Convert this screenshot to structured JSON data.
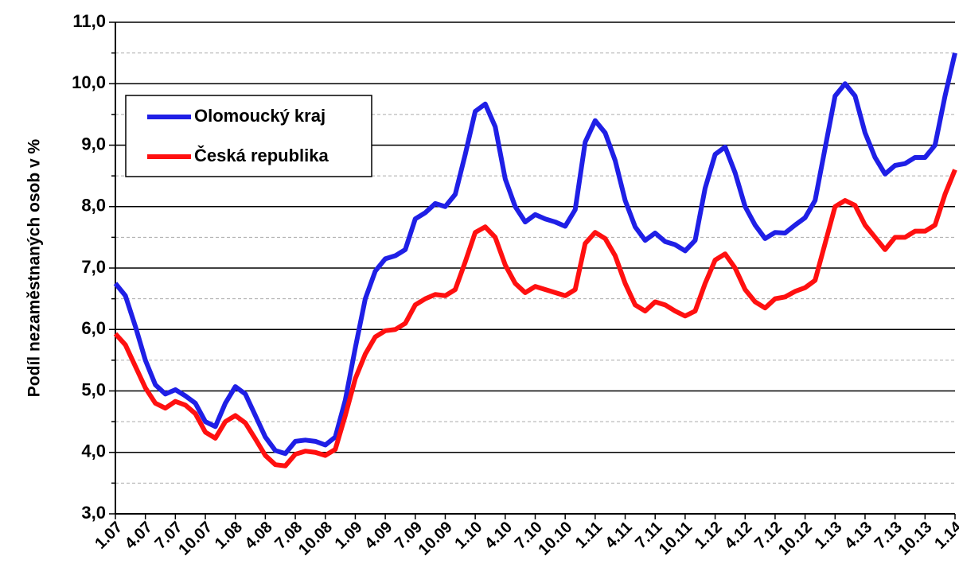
{
  "chart_data": {
    "type": "line",
    "y_label": "Podíl nezaměstnaných osob v %",
    "categories": [
      "1.07",
      null,
      null,
      "4.07",
      null,
      null,
      "7.07",
      null,
      null,
      "10.07",
      null,
      null,
      "1.08",
      null,
      null,
      "4.08",
      null,
      null,
      "7.08",
      null,
      null,
      "10.08",
      null,
      null,
      "1.09",
      null,
      null,
      "4.09",
      null,
      null,
      "7.09",
      null,
      null,
      "10.09",
      null,
      null,
      "1.10",
      null,
      null,
      "4.10",
      null,
      null,
      "7.10",
      null,
      null,
      "10.10",
      null,
      null,
      "1.11",
      null,
      null,
      "4.11",
      null,
      null,
      "7.11",
      null,
      null,
      "10.11",
      null,
      null,
      "1.12",
      null,
      null,
      "4.12",
      null,
      null,
      "7.12",
      null,
      null,
      "10.12",
      null,
      null,
      "1.13",
      null,
      null,
      "4.13",
      null,
      null,
      "7.13",
      null,
      null,
      "10.13",
      null,
      null,
      "1.14"
    ],
    "series": [
      {
        "name": "Olomoucký kraj",
        "color": "#1f1fe6",
        "values": [
          6.75,
          6.55,
          6.05,
          5.5,
          5.1,
          4.95,
          5.02,
          4.92,
          4.8,
          4.5,
          4.42,
          4.8,
          5.07,
          4.95,
          4.6,
          4.25,
          4.03,
          3.98,
          4.18,
          4.2,
          4.18,
          4.12,
          4.25,
          4.85,
          5.7,
          6.5,
          6.95,
          7.15,
          7.2,
          7.3,
          7.8,
          7.9,
          8.05,
          8.0,
          8.2,
          8.85,
          9.55,
          9.67,
          9.3,
          8.45,
          8.0,
          7.75,
          7.87,
          7.8,
          7.75,
          7.68,
          7.95,
          9.05,
          9.4,
          9.2,
          8.75,
          8.1,
          7.67,
          7.45,
          7.57,
          7.43,
          7.38,
          7.28,
          7.45,
          8.3,
          8.85,
          8.97,
          8.55,
          8.0,
          7.7,
          7.48,
          7.58,
          7.57,
          7.7,
          7.82,
          8.1,
          8.95,
          9.8,
          10.0,
          9.8,
          9.2,
          8.8,
          8.53,
          8.67,
          8.7,
          8.8,
          8.8,
          9.0,
          9.8,
          10.5
        ]
      },
      {
        "name": "Česká republika",
        "color": "#ff1010",
        "values": [
          5.93,
          5.75,
          5.4,
          5.05,
          4.8,
          4.72,
          4.83,
          4.77,
          4.63,
          4.33,
          4.23,
          4.5,
          4.6,
          4.48,
          4.22,
          3.95,
          3.8,
          3.78,
          3.97,
          4.02,
          4.0,
          3.95,
          4.05,
          4.6,
          5.2,
          5.6,
          5.88,
          5.98,
          6.0,
          6.1,
          6.4,
          6.5,
          6.57,
          6.55,
          6.65,
          7.1,
          7.58,
          7.67,
          7.5,
          7.05,
          6.75,
          6.6,
          6.7,
          6.65,
          6.6,
          6.55,
          6.65,
          7.4,
          7.58,
          7.48,
          7.2,
          6.75,
          6.4,
          6.3,
          6.45,
          6.4,
          6.3,
          6.22,
          6.3,
          6.75,
          7.13,
          7.23,
          7.0,
          6.65,
          6.45,
          6.35,
          6.5,
          6.53,
          6.62,
          6.68,
          6.8,
          7.4,
          8.0,
          8.1,
          8.02,
          7.7,
          7.5,
          7.3,
          7.5,
          7.5,
          7.6,
          7.6,
          7.7,
          8.2,
          8.6
        ]
      }
    ],
    "ylim": [
      3,
      11
    ],
    "yticks": [
      {
        "value": 3,
        "label": "3,0"
      },
      {
        "value": 4,
        "label": "4,0"
      },
      {
        "value": 5,
        "label": "5,0"
      },
      {
        "value": 6,
        "label": "6,0"
      },
      {
        "value": 7,
        "label": "7,0"
      },
      {
        "value": 8,
        "label": "8,0"
      },
      {
        "value": 9,
        "label": "9,0"
      },
      {
        "value": 10,
        "label": "10,0"
      },
      {
        "value": 11,
        "label": "11,0"
      }
    ],
    "yminor": [
      3.5,
      4.5,
      5.5,
      6.5,
      7.5,
      8.5,
      9.5,
      10.5
    ],
    "grid": true
  }
}
